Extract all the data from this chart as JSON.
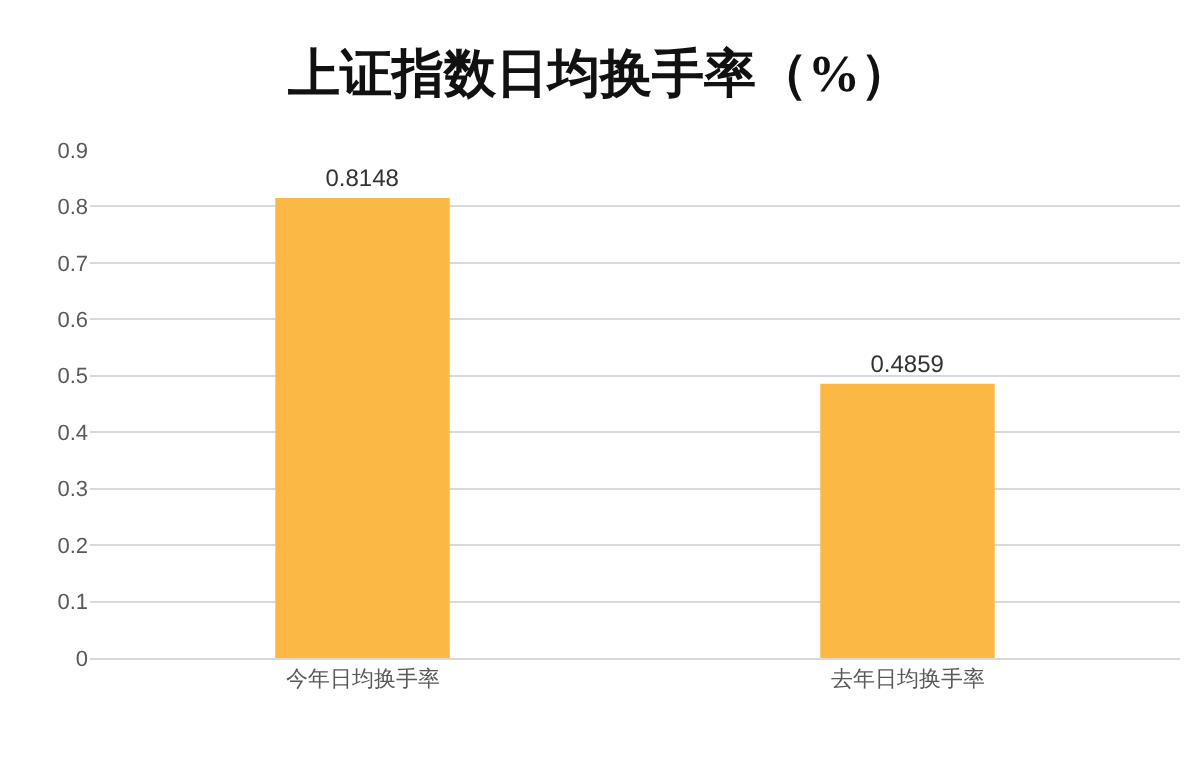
{
  "chart_data": {
    "type": "bar",
    "title": "上证指数日均换手率（%）",
    "categories": [
      "今年日均换手率",
      "去年日均换手率"
    ],
    "values": [
      0.8148,
      0.4859
    ],
    "color": "#fbb844",
    "ylim": [
      0,
      0.9
    ],
    "yticks": [
      0,
      0.1,
      0.2,
      0.3,
      0.4,
      0.5,
      0.6,
      0.7,
      0.8,
      0.9
    ],
    "grid": "y",
    "data_labels": true,
    "legend": false
  }
}
